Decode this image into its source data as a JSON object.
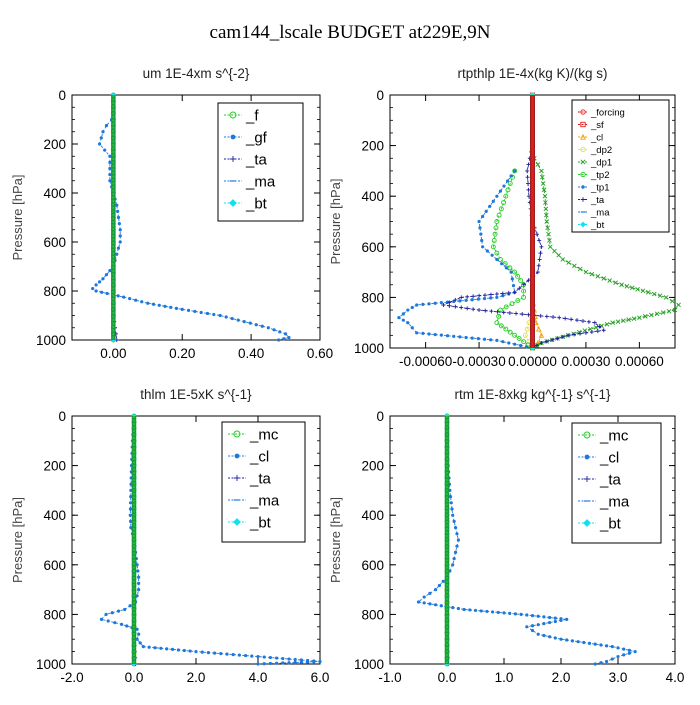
{
  "figure": {
    "title": "cam144_lscale  BUDGET at229E,9N"
  },
  "colors": {
    "green": "#22cc22",
    "blue": "#1e78dc",
    "navy": "#2020a0",
    "cyan": "#10e0f0",
    "red": "#e02020",
    "orange": "#f0a000",
    "yellow": "#e8e040",
    "dkgreen": "#20a020"
  },
  "chart_data": [
    {
      "type": "line",
      "title": "um   1E-4xm s^{-2}",
      "ylabel": "Pressure [hPa]",
      "xlim": [
        -0.12,
        0.6
      ],
      "ylim": [
        0,
        1000
      ],
      "y_inverted": true,
      "x_ticks": [
        0.0,
        0.2,
        0.4,
        0.6
      ],
      "x_tick_labels": [
        "0.00",
        "0.20",
        "0.40",
        "0.60"
      ],
      "y_ticks": [
        0,
        200,
        400,
        600,
        800,
        1000
      ],
      "legend_position": "upper-right",
      "series": [
        {
          "name": "_f",
          "color": "green",
          "marker": "circle",
          "y": [
            0,
            100,
            200,
            300,
            400,
            500,
            600,
            700,
            800,
            900,
            1000
          ],
          "x": [
            0,
            0,
            0,
            0,
            0,
            0,
            0,
            0,
            0,
            0,
            0
          ]
        },
        {
          "name": "_gf",
          "color": "blue",
          "marker": "dot",
          "y": [
            100,
            125,
            150,
            175,
            200,
            225,
            250,
            300,
            350,
            400,
            450,
            500,
            550,
            600,
            650,
            700,
            750,
            775,
            790,
            800,
            825,
            850,
            875,
            900,
            925,
            950,
            975,
            990,
            1000
          ],
          "x": [
            -0.005,
            -0.02,
            -0.03,
            -0.035,
            -0.04,
            -0.025,
            -0.01,
            -0.01,
            -0.01,
            0,
            0.01,
            0.015,
            0.02,
            0.02,
            0.01,
            0,
            -0.03,
            -0.05,
            -0.06,
            -0.05,
            0.03,
            0.1,
            0.2,
            0.31,
            0.38,
            0.45,
            0.5,
            0.51,
            0.48
          ]
        },
        {
          "name": "_ta",
          "color": "navy",
          "marker": "plus",
          "y": [
            0,
            200,
            400,
            600,
            800,
            900,
            1000
          ],
          "x": [
            0,
            0,
            0,
            0,
            0,
            0,
            0.01
          ]
        },
        {
          "name": "_ma",
          "color": "blue",
          "marker": "dash",
          "y": [
            0,
            1000
          ],
          "x": [
            0,
            0
          ]
        },
        {
          "name": "_bt",
          "color": "cyan",
          "marker": "diamond",
          "y": [
            0,
            1000
          ],
          "x": [
            0,
            0
          ]
        }
      ]
    },
    {
      "type": "line",
      "title": "rtpthlp   1E-4x(kg K)/(kg s)",
      "ylabel": "Pressure [hPa]",
      "xlim": [
        -0.0008,
        0.0008
      ],
      "ylim": [
        0,
        1000
      ],
      "y_inverted": true,
      "x_ticks": [
        -0.0006,
        -0.0003,
        0.0,
        0.0003,
        0.0006
      ],
      "x_tick_labels": [
        "-0.00060",
        "-0.00030",
        "0.00000",
        "0.00030",
        "0.00060"
      ],
      "y_ticks": [
        0,
        200,
        400,
        600,
        800,
        1000
      ],
      "legend_position": "upper-right",
      "series": [
        {
          "name": "_forcing",
          "color": "red",
          "marker": "circle",
          "y": [
            0,
            1000
          ],
          "x": [
            0,
            0
          ]
        },
        {
          "name": "_sf",
          "color": "red",
          "marker": "square",
          "y": [
            0,
            1000
          ],
          "x": [
            0,
            0
          ]
        },
        {
          "name": "_cl",
          "color": "orange",
          "marker": "triangle",
          "y": [
            0,
            800,
            900,
            950,
            980,
            1000
          ],
          "x": [
            0,
            0,
            2e-05,
            5e-05,
            3e-05,
            0
          ]
        },
        {
          "name": "_dp2",
          "color": "yellow",
          "marker": "circle",
          "y": [
            0,
            850,
            900,
            950,
            1000
          ],
          "x": [
            0,
            0,
            -2e-05,
            -4e-05,
            0
          ]
        },
        {
          "name": "_dp1",
          "color": "dkgreen",
          "marker": "cross",
          "y": [
            250,
            300,
            400,
            500,
            600,
            650,
            700,
            750,
            780,
            800,
            830,
            850,
            880,
            900,
            950,
            980,
            1000
          ],
          "x": [
            1e-05,
            5e-05,
            7e-05,
            8e-05,
            0.0001,
            0.00017,
            0.0003,
            0.0005,
            0.00065,
            0.00075,
            0.00082,
            0.0008,
            0.0006,
            0.00045,
            0.0002,
            5e-05,
            0
          ]
        },
        {
          "name": "_tp2",
          "color": "green",
          "marker": "circle",
          "y": [
            300,
            400,
            500,
            600,
            650,
            700,
            750,
            800,
            850,
            900,
            950,
            1000
          ],
          "x": [
            -0.0001,
            -0.00015,
            -0.0002,
            -0.00022,
            -0.00018,
            -0.0001,
            -5e-05,
            -5e-05,
            -0.00018,
            -0.0002,
            -0.0001,
            0
          ]
        },
        {
          "name": "_tp1",
          "color": "blue",
          "marker": "dot",
          "y": [
            300,
            400,
            500,
            600,
            700,
            780,
            800,
            830,
            850,
            880,
            900,
            940,
            970,
            1000
          ],
          "x": [
            -0.0001,
            -0.0002,
            -0.0003,
            -0.00028,
            -0.00012,
            -0.0001,
            -0.0002,
            -0.00065,
            -0.0007,
            -0.00075,
            -0.0007,
            -0.00065,
            -0.0002,
            0
          ]
        },
        {
          "name": "_ta",
          "color": "navy",
          "marker": "plus",
          "y": [
            200,
            300,
            400,
            500,
            600,
            700,
            780,
            800,
            830,
            850,
            880,
            900,
            930,
            950,
            980,
            1000
          ],
          "x": [
            0,
            -3e-05,
            -2e-05,
            0,
            5e-05,
            3e-05,
            -0.0001,
            -0.0004,
            -0.0005,
            -0.0003,
            0.00015,
            0.00035,
            0.0004,
            0.0002,
            5e-05,
            0
          ]
        },
        {
          "name": "_ma",
          "color": "blue",
          "marker": "dash",
          "y": [
            0,
            1000
          ],
          "x": [
            0,
            0
          ]
        },
        {
          "name": "_bt",
          "color": "cyan",
          "marker": "diamond",
          "y": [
            0,
            1000
          ],
          "x": [
            0,
            0
          ]
        }
      ]
    },
    {
      "type": "line",
      "title": "thlm   1E-5xK s^{-1}",
      "ylabel": "Pressure [hPa]",
      "xlim": [
        -2.0,
        6.0
      ],
      "ylim": [
        0,
        1000
      ],
      "y_inverted": true,
      "x_ticks": [
        -2.0,
        0.0,
        2.0,
        4.0,
        6.0
      ],
      "x_tick_labels": [
        "-2.0",
        "0.0",
        "2.0",
        "4.0",
        "6.0"
      ],
      "y_ticks": [
        0,
        200,
        400,
        600,
        800,
        1000
      ],
      "legend_position": "upper-right",
      "series": [
        {
          "name": "_mc",
          "color": "green",
          "marker": "circle",
          "y": [
            0,
            100,
            200,
            300,
            400,
            500,
            600,
            700,
            800,
            900,
            1000
          ],
          "x": [
            0,
            0,
            0,
            0,
            0,
            0,
            0,
            0,
            0,
            0,
            0
          ]
        },
        {
          "name": "_cl",
          "color": "blue",
          "marker": "dot",
          "y": [
            0,
            100,
            200,
            300,
            400,
            450,
            500,
            550,
            600,
            650,
            700,
            750,
            780,
            800,
            820,
            840,
            860,
            880,
            900,
            930,
            950,
            970,
            990,
            1000
          ],
          "x": [
            0,
            -0.05,
            -0.08,
            -0.1,
            -0.12,
            -0.1,
            0,
            0.05,
            0.1,
            0.15,
            0.15,
            0.05,
            -0.3,
            -0.9,
            -1.05,
            -0.4,
            0.1,
            0.15,
            0.1,
            0.3,
            2.0,
            4.0,
            6.0,
            4.0
          ]
        },
        {
          "name": "_ta",
          "color": "navy",
          "marker": "plus",
          "y": [
            0,
            500,
            900,
            1000
          ],
          "x": [
            0,
            0,
            0,
            0.05
          ]
        },
        {
          "name": "_ma",
          "color": "blue",
          "marker": "dash",
          "y": [
            0,
            1000
          ],
          "x": [
            0,
            0
          ]
        },
        {
          "name": "_bt",
          "color": "cyan",
          "marker": "diamond",
          "y": [
            0,
            1000
          ],
          "x": [
            0,
            0
          ]
        }
      ]
    },
    {
      "type": "line",
      "title": "rtm   1E-8xkg kg^{-1} s^{-1}",
      "ylabel": "Pressure [hPa]",
      "xlim": [
        -1.0,
        4.0
      ],
      "ylim": [
        0,
        1000
      ],
      "y_inverted": true,
      "x_ticks": [
        -1.0,
        0.0,
        1.0,
        2.0,
        3.0,
        4.0
      ],
      "x_tick_labels": [
        "-1.0",
        "0.0",
        "1.0",
        "2.0",
        "3.0",
        "4.0"
      ],
      "y_ticks": [
        0,
        200,
        400,
        600,
        800,
        1000
      ],
      "legend_position": "upper-right",
      "series": [
        {
          "name": "_mc",
          "color": "green",
          "marker": "circle",
          "y": [
            0,
            100,
            200,
            300,
            400,
            500,
            600,
            700,
            800,
            900,
            1000
          ],
          "x": [
            0,
            0,
            0,
            0,
            0,
            0,
            0,
            0,
            0,
            0,
            0
          ]
        },
        {
          "name": "_cl",
          "color": "blue",
          "marker": "dot",
          "y": [
            0,
            100,
            200,
            300,
            400,
            450,
            500,
            550,
            600,
            650,
            700,
            730,
            750,
            780,
            800,
            820,
            850,
            880,
            900,
            930,
            950,
            970,
            990,
            1000
          ],
          "x": [
            0,
            0,
            0.02,
            0.05,
            0.1,
            0.15,
            0.2,
            0.15,
            0.1,
            0.0,
            -0.2,
            -0.4,
            -0.5,
            0.3,
            1.3,
            2.1,
            1.4,
            1.6,
            2.0,
            2.9,
            3.3,
            3.0,
            2.8,
            2.6
          ]
        },
        {
          "name": "_ta",
          "color": "navy",
          "marker": "plus",
          "y": [
            0,
            500,
            900,
            1000
          ],
          "x": [
            0,
            0,
            0,
            0.02
          ]
        },
        {
          "name": "_ma",
          "color": "blue",
          "marker": "dash",
          "y": [
            0,
            1000
          ],
          "x": [
            0,
            0
          ]
        },
        {
          "name": "_bt",
          "color": "cyan",
          "marker": "diamond",
          "y": [
            0,
            1000
          ],
          "x": [
            0,
            0
          ]
        }
      ]
    }
  ]
}
